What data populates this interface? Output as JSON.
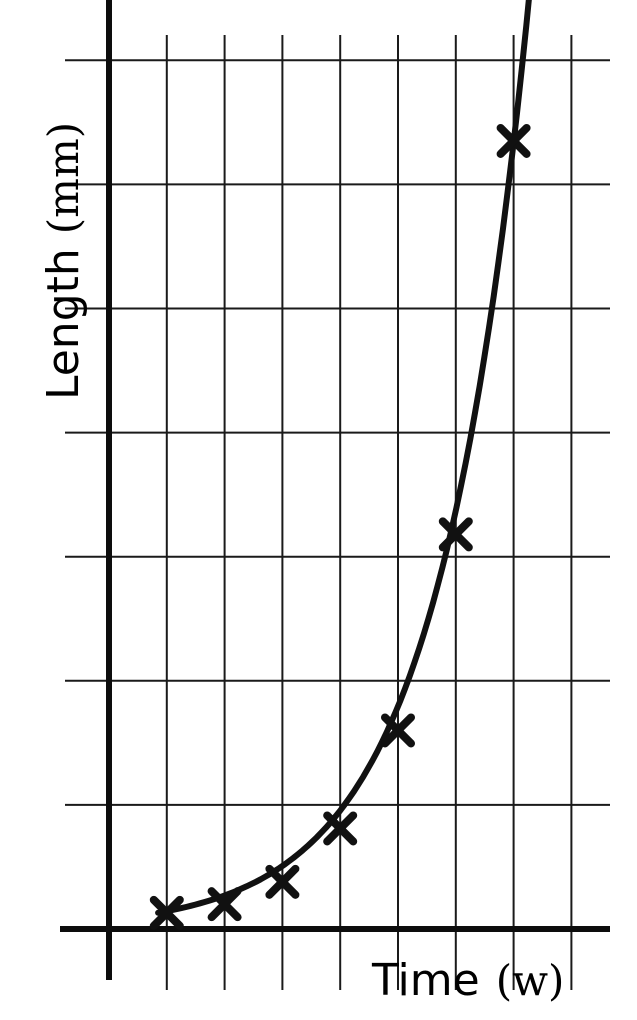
{
  "chart_data": {
    "type": "line",
    "xlabel_parts": [
      "Time",
      "(w)"
    ],
    "ylabel_parts": [
      "Length",
      "(mm)"
    ],
    "xlim": [
      0,
      8.5
    ],
    "ylim": [
      0,
      7.4
    ],
    "x_grid": [
      1,
      2,
      3,
      4,
      5,
      6,
      7,
      8
    ],
    "y_grid": [
      1,
      2,
      3,
      4,
      5,
      6,
      7
    ],
    "grid": true,
    "legend": "none",
    "series": [
      {
        "marker": "cross",
        "points": [
          {
            "x": 1.0,
            "y": 0.13
          },
          {
            "x": 2.0,
            "y": 0.2
          },
          {
            "x": 3.0,
            "y": 0.38
          },
          {
            "x": 4.0,
            "y": 0.81
          },
          {
            "x": 5.0,
            "y": 1.6
          },
          {
            "x": 6.0,
            "y": 3.18
          },
          {
            "x": 7.0,
            "y": 6.35
          }
        ]
      }
    ],
    "trend": {
      "form": "exponential",
      "a": 0.0765,
      "b": 0.631,
      "x_end": 7.3
    },
    "colors": {
      "ink": "#111111",
      "background": "#ffffff"
    }
  }
}
